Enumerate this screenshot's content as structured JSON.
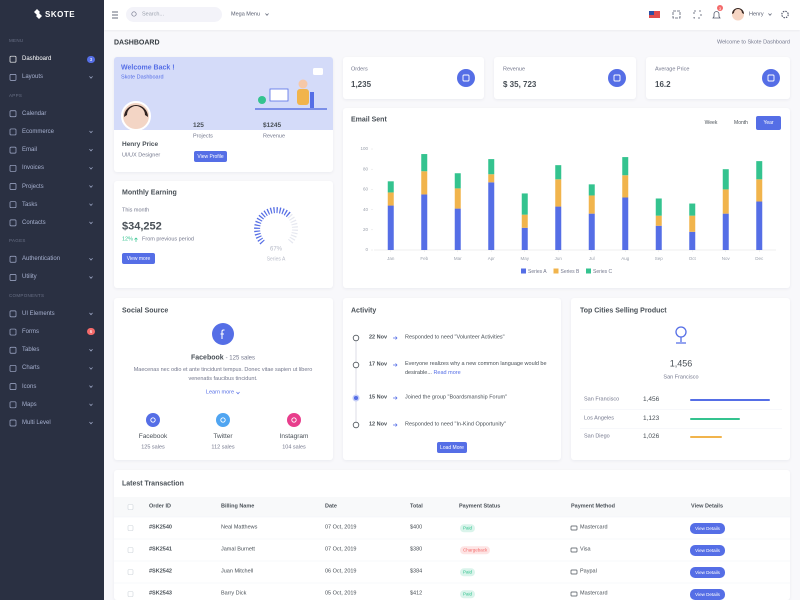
{
  "sidebar": {
    "logo": "SKOTE",
    "sections": [
      {
        "title": "MENU",
        "items": [
          "Dashboard",
          "Layouts"
        ]
      },
      {
        "title": "APPS",
        "items": [
          "Calendar",
          "Ecommerce",
          "Email",
          "Invoices",
          "Projects",
          "Tasks",
          "Contacts"
        ]
      },
      {
        "title": "PAGES",
        "items": [
          "Authentication",
          "Utility"
        ]
      },
      {
        "title": "COMPONENTS",
        "items": [
          "UI Elements",
          "Forms",
          "Tables",
          "Charts",
          "Icons",
          "Maps",
          "Multi Level"
        ]
      }
    ],
    "dashboard_badge": "3",
    "forms_badge": "6"
  },
  "topbar": {
    "search": "Search...",
    "mega_menu": "Mega Menu",
    "notification_count": "3",
    "user": "Henry"
  },
  "page": {
    "title": "DASHBOARD",
    "breadcrumb": "Welcome to Skote Dashboard"
  },
  "welcome": {
    "title": "Welcome Back !",
    "subtitle": "Skote Dashboard",
    "name": "Henry Price",
    "role": "UI/UX Designer",
    "projects": "125",
    "projects_label": "Projects",
    "revenue": "$1245",
    "revenue_label": "Revenue",
    "button": "View Profile"
  },
  "monthly_earning": {
    "title": "Monthly Earning",
    "period": "This month",
    "amount": "$34,252",
    "change": "12%",
    "change_text": "From previous period",
    "button": "View more",
    "gauge": {
      "values": [
        67
      ],
      "value_labels": [
        "67%"
      ],
      "name": "Series A"
    }
  },
  "stats": [
    {
      "label": "Orders",
      "value": "1,235"
    },
    {
      "label": "Revenue",
      "value": "$ 35, 723"
    },
    {
      "label": "Average Price",
      "value": "16.2"
    }
  ],
  "chart_data": {
    "type": "bar",
    "stacked": true,
    "title": "Email Sent",
    "periods": [
      "Week",
      "Month",
      "Year"
    ],
    "categories": [
      "Jan",
      "Feb",
      "Mar",
      "Apr",
      "May",
      "Jun",
      "Jul",
      "Aug",
      "Sep",
      "Oct",
      "Nov",
      "Dec"
    ],
    "series": [
      {
        "name": "Series A",
        "color": "#556ee6",
        "values": [
          44,
          55,
          41,
          67,
          22,
          43,
          36,
          52,
          24,
          18,
          36,
          48
        ]
      },
      {
        "name": "Series B",
        "color": "#f1b44c",
        "values": [
          13,
          23,
          20,
          8,
          13,
          27,
          18,
          22,
          10,
          16,
          24,
          22
        ]
      },
      {
        "name": "Series C",
        "color": "#34c38f",
        "values": [
          11,
          17,
          15,
          15,
          21,
          14,
          11,
          18,
          17,
          12,
          20,
          18
        ]
      }
    ],
    "ylim": [
      0,
      100
    ],
    "yticks": [
      0,
      20,
      40,
      60,
      80,
      100
    ],
    "grid": false,
    "legend": "bottom"
  },
  "social": {
    "title": "Social Source",
    "source": "Facebook",
    "source_sales": "- 125 sales",
    "text": "Maecenas nec odio et ante tincidunt tempus. Donec vitae sapien ut libero venenatis faucibus tincidunt.",
    "link": "Learn more",
    "channels": [
      {
        "name": "Facebook",
        "sales": "125 sales"
      },
      {
        "name": "Twitter",
        "sales": "112 sales"
      },
      {
        "name": "Instagram",
        "sales": "104 sales"
      }
    ]
  },
  "activity": {
    "title": "Activity",
    "items": [
      {
        "date": "22 Nov",
        "text": "Responded to need \"Volunteer Activities\""
      },
      {
        "date": "17 Nov",
        "text": "Everyone realizes why a new common language would be desirable...",
        "link": "Read more"
      },
      {
        "date": "15 Nov",
        "text": "Joined the group \"Boardsmanship Forum\""
      },
      {
        "date": "12 Nov",
        "text": "Responded to need \"In-Kind Opportunity\""
      }
    ],
    "button": "Load More"
  },
  "cities": {
    "title": "Top Cities Selling Product",
    "value": "1,456",
    "city": "San Francisco",
    "rows": [
      {
        "city": "San Francisco",
        "value": "1,456"
      },
      {
        "city": "Los Angeles",
        "value": "1,123"
      },
      {
        "city": "San Diego",
        "value": "1,026"
      }
    ]
  },
  "transactions": {
    "title": "Latest Transaction",
    "columns": [
      "Order ID",
      "Billing Name",
      "Date",
      "Total",
      "Payment Status",
      "Payment Method",
      "View Details"
    ],
    "rows": [
      [
        "#SK2540",
        "Neal Matthews",
        "07 Oct, 2019",
        "$400",
        "Paid",
        "Mastercard",
        "View Details"
      ],
      [
        "#SK2541",
        "Jamal Burnett",
        "07 Oct, 2019",
        "$380",
        "Chargeback",
        "Visa",
        "View Details"
      ],
      [
        "#SK2542",
        "Juan Mitchell",
        "06 Oct, 2019",
        "$384",
        "Paid",
        "Paypal",
        "View Details"
      ],
      [
        "#SK2543",
        "Barry Dick",
        "05 Oct, 2019",
        "$412",
        "Paid",
        "Mastercard",
        "View Details"
      ]
    ]
  }
}
